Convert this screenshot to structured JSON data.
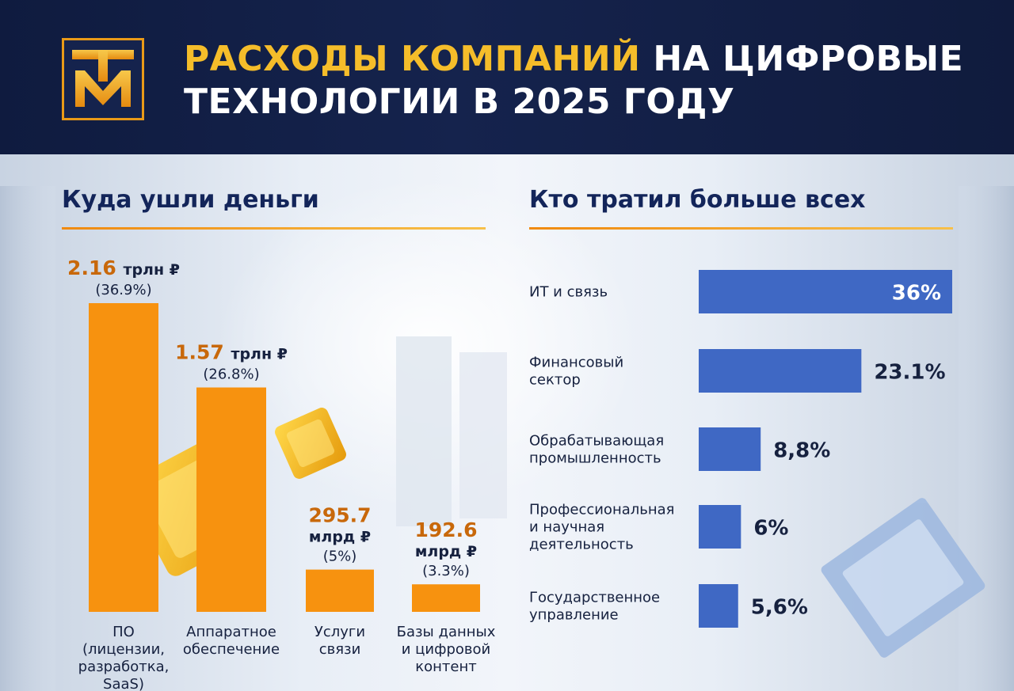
{
  "header": {
    "title_accent": "РАСХОДЫ КОМПАНИЙ",
    "title_rest": " НА ЦИФРОВЫЕ",
    "title_line2": "ТЕХНОЛОГИИ В 2025 ГОДУ",
    "logo_text": "ТМ",
    "colors": {
      "background": "#13204a",
      "accent": "#f5bd2a"
    }
  },
  "left_section": {
    "title": "Куда ушли деньги"
  },
  "right_section": {
    "title": "Кто тратил больше всех"
  },
  "chart_data": [
    {
      "type": "bar",
      "title": "Куда ушли деньги",
      "categories": [
        [
          "ПО",
          "(лицензии,",
          "разработка,",
          "SaaS)"
        ],
        [
          "Аппаратное",
          "обеспечение"
        ],
        [
          "Услуги",
          "связи"
        ],
        [
          "Базы данных",
          "и цифровой",
          "контент"
        ]
      ],
      "values": [
        2160,
        1570,
        295.7,
        192.6
      ],
      "value_unit": "млрд ₽",
      "labels": [
        {
          "number": "2.16",
          "unit": "трлн ₽",
          "share": "(36.9%)"
        },
        {
          "number": "1.57",
          "unit": "трлн ₽",
          "share": "(26.8%)"
        },
        {
          "number": "295.7",
          "unit": "млрд ₽",
          "share": "(5%)"
        },
        {
          "number": "192.6",
          "unit": "млрд ₽",
          "share": "(3.3%)"
        }
      ],
      "shares": [
        36.9,
        26.8,
        5,
        3.3
      ],
      "color": "#f7920f",
      "grid": false
    },
    {
      "type": "bar",
      "orientation": "horizontal",
      "title": "Кто тратил больше всех",
      "categories": [
        [
          "ИТ и связь"
        ],
        [
          "Финансовый",
          "сектор"
        ],
        [
          "Обрабатывающая",
          "промышленность"
        ],
        [
          "Профессиональная",
          "и научная",
          "деятельность"
        ],
        [
          "Государственное",
          "управление"
        ]
      ],
      "values": [
        36,
        23.1,
        8.8,
        6,
        5.6
      ],
      "value_labels": [
        "36%",
        "23.1%",
        "8,8%",
        "6%",
        "5,6%"
      ],
      "color": "#3f68c4",
      "grid": false
    }
  ]
}
